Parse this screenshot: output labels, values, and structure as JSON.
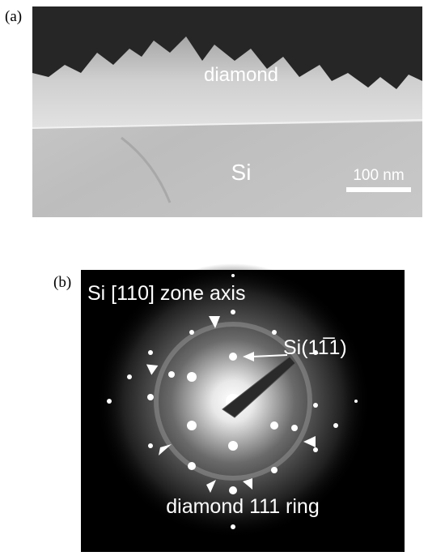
{
  "panels": [
    {
      "label": "(a)",
      "annotations": [
        "diamond",
        "Si"
      ],
      "scale_bar": "100 nm"
    },
    {
      "label": "(b)",
      "annotations": [
        "Si [110] zone axis",
        "Si(11̅1)",
        "diamond 111 ring"
      ]
    }
  ]
}
